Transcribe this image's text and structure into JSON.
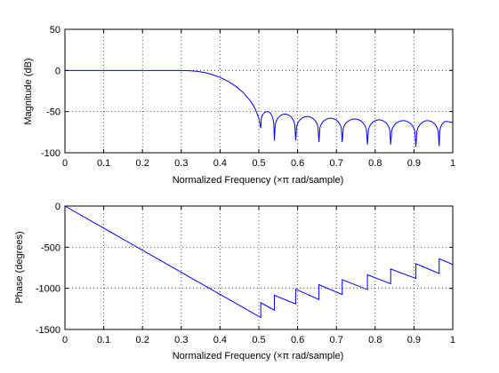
{
  "chart_data": [
    {
      "type": "line",
      "xlabel": "Normalized Frequency  (×π rad/sample)",
      "ylabel": "Magnitude (dB)",
      "xlim": [
        0,
        1
      ],
      "ylim": [
        -100,
        50
      ],
      "xticks": [
        "0",
        "0.1",
        "0.2",
        "0.3",
        "0.4",
        "0.5",
        "0.6",
        "0.7",
        "0.8",
        "0.9",
        "1"
      ],
      "yticks": [
        "-100",
        "-50",
        "0",
        "50"
      ],
      "grid": true,
      "line_color": "#0000ff",
      "passband": {
        "x": [
          0,
          0.3
        ],
        "y": 0
      },
      "transition": {
        "x": [
          0.3,
          0.32,
          0.34,
          0.36,
          0.38,
          0.4,
          0.42,
          0.44,
          0.46,
          0.48,
          0.49,
          0.5,
          0.505
        ],
        "y": [
          0,
          -0.3,
          -1,
          -2.5,
          -5,
          -8.5,
          -13,
          -19,
          -27,
          -38,
          -46,
          -58,
          -70
        ]
      },
      "stopband_lobes": [
        {
          "x0": 0.505,
          "x1": 0.54,
          "peak": -50
        },
        {
          "x0": 0.54,
          "x1": 0.595,
          "peak": -53
        },
        {
          "x0": 0.595,
          "x1": 0.655,
          "peak": -56
        },
        {
          "x0": 0.655,
          "x1": 0.715,
          "peak": -58
        },
        {
          "x0": 0.715,
          "x1": 0.78,
          "peak": -59
        },
        {
          "x0": 0.78,
          "x1": 0.84,
          "peak": -60
        },
        {
          "x0": 0.84,
          "x1": 0.905,
          "peak": -61
        },
        {
          "x0": 0.905,
          "x1": 0.965,
          "peak": -61
        },
        {
          "x0": 0.965,
          "x1": 1.0,
          "peak": -62
        }
      ],
      "null_depths": [
        -70,
        -85,
        -85,
        -87,
        -87,
        -90,
        -90,
        -93,
        -92
      ]
    },
    {
      "type": "line",
      "xlabel": "Normalized Frequency  (×π rad/sample)",
      "ylabel": "Phase (degrees)",
      "xlim": [
        0,
        1
      ],
      "ylim": [
        -1500,
        0
      ],
      "xticks": [
        "0",
        "0.1",
        "0.2",
        "0.3",
        "0.4",
        "0.5",
        "0.6",
        "0.7",
        "0.8",
        "0.9",
        "1"
      ],
      "yticks": [
        "-1500",
        "-1000",
        "-500",
        "0"
      ],
      "grid": true,
      "line_color": "#0000ff",
      "x": [
        0,
        0.505,
        0.505,
        0.54,
        0.54,
        0.595,
        0.595,
        0.655,
        0.655,
        0.715,
        0.715,
        0.78,
        0.78,
        0.84,
        0.84,
        0.905,
        0.905,
        0.965,
        0.965,
        1.0
      ],
      "y": [
        0,
        -1355,
        -1175,
        -1265,
        -1085,
        -1190,
        -1010,
        -1135,
        -955,
        -1075,
        -895,
        -1015,
        -835,
        -945,
        -765,
        -880,
        -700,
        -820,
        -640,
        -710
      ]
    }
  ]
}
